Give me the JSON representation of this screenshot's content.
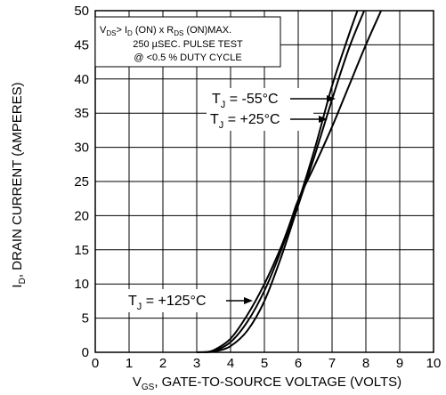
{
  "chart_data": {
    "type": "line",
    "title": "",
    "xlabel": {
      "main": "V",
      "sub": "GS",
      "rest": ", GATE-TO-SOURCE VOLTAGE (VOLTS)"
    },
    "ylabel": {
      "main": "I",
      "sub": "D",
      "rest": ", DRAIN CURRENT (AMPERES)"
    },
    "xlim": [
      0,
      10
    ],
    "ylim": [
      0,
      50
    ],
    "xticks": [
      "0",
      "1",
      "2",
      "3",
      "4",
      "5",
      "6",
      "7",
      "8",
      "9",
      "10"
    ],
    "yticks": [
      "0",
      "5",
      "10",
      "15",
      "20",
      "25",
      "30",
      "35",
      "40",
      "45",
      "50"
    ],
    "grid": true,
    "note": {
      "line1": {
        "a": "V",
        "a_sub": "DS",
        "b": "> I",
        "b_sub": "D",
        "c": " (ON)  x  R",
        "c_sub": "DS",
        "d": " (ON)MAX."
      },
      "line2": "250 µSEC.  PULSE  TEST",
      "line3": "@  <0.5 %  DUTY  CYCLE"
    },
    "series": [
      {
        "label": {
          "main": "T",
          "sub": "J",
          "rest": " = -55°C"
        },
        "x": [
          3.0,
          3.5,
          4.0,
          4.5,
          5.0,
          5.5,
          6.0,
          6.5,
          7.0,
          7.5,
          7.75
        ],
        "y": [
          0,
          0.2,
          1.5,
          4.5,
          9,
          15,
          22,
          30,
          39,
          46.5,
          50
        ]
      },
      {
        "label": {
          "main": "T",
          "sub": "J",
          "rest": " = +25°C"
        },
        "x": [
          3.3,
          3.6,
          4.0,
          4.5,
          5.0,
          5.5,
          6.0,
          6.5,
          7.0,
          7.5,
          7.95
        ],
        "y": [
          0,
          0.2,
          0.9,
          3.2,
          7.5,
          14,
          21.5,
          29,
          37,
          44.5,
          50
        ]
      },
      {
        "label": {
          "main": "T",
          "sub": "J",
          "rest": " = +125°C"
        },
        "x": [
          3.2,
          3.5,
          4.0,
          4.5,
          5.0,
          5.5,
          5.8,
          6.0,
          6.5,
          7.0,
          7.5,
          8.0,
          8.45
        ],
        "y": [
          0,
          0.3,
          2,
          5.5,
          10,
          15.5,
          19.5,
          22.3,
          27.5,
          33,
          39,
          45,
          50
        ]
      }
    ]
  }
}
